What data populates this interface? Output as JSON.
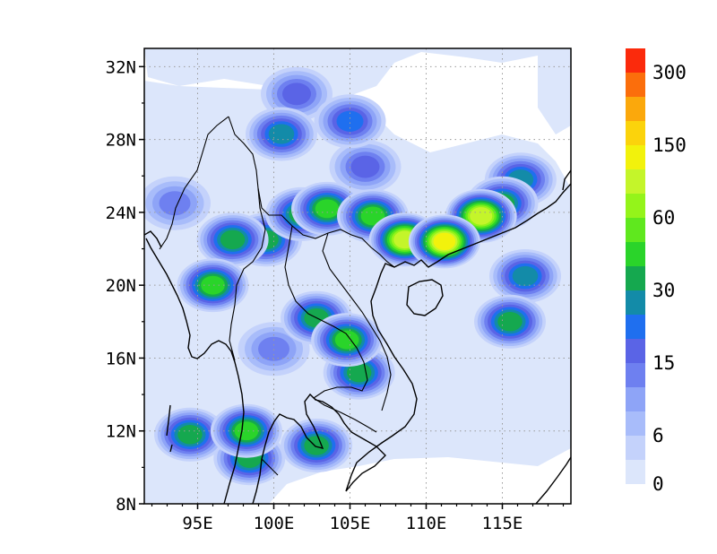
{
  "map": {
    "lon_range": [
      91.5,
      119.5
    ],
    "lat_range": [
      8,
      33
    ],
    "lat_ticks": [
      {
        "value": 8,
        "label": "8N"
      },
      {
        "value": 12,
        "label": "12N"
      },
      {
        "value": 16,
        "label": "16N"
      },
      {
        "value": 20,
        "label": "20N"
      },
      {
        "value": 24,
        "label": "24N"
      },
      {
        "value": 28,
        "label": "28N"
      },
      {
        "value": 32,
        "label": "32N"
      }
    ],
    "lon_ticks": [
      {
        "value": 95,
        "label": "95E"
      },
      {
        "value": 100,
        "label": "100E"
      },
      {
        "value": 105,
        "label": "105E"
      },
      {
        "value": 110,
        "label": "110E"
      },
      {
        "value": 115,
        "label": "115E"
      }
    ],
    "gridlines": true,
    "field": "gridded precipitation-like totals over Southeast Asia / South China, shaded contours"
  },
  "colorbar": {
    "levels": [
      "0",
      "3",
      "6",
      "9",
      "12",
      "15",
      "20",
      "25",
      "30",
      "40",
      "50",
      "60",
      "80",
      "100",
      "150",
      "200",
      "250",
      "300"
    ],
    "labels": [
      "0",
      "6",
      "15",
      "30",
      "60",
      "150",
      "300"
    ],
    "colors": [
      "#dce6fb",
      "#c4d2fb",
      "#a8bcfa",
      "#8ea4f7",
      "#6e80f0",
      "#5a64e6",
      "#1f6fef",
      "#138ba8",
      "#15a84f",
      "#2ad42a",
      "#5fe81e",
      "#94f41a",
      "#c4f52a",
      "#f2f20c",
      "#fbd30c",
      "#fba80c",
      "#fb6e0c",
      "#fb2a0c"
    ]
  },
  "legend": {
    "placement": "right"
  },
  "hotspots": [
    {
      "lon": 111.2,
      "lat": 22.4,
      "value": 100
    },
    {
      "lon": 108.6,
      "lat": 22.5,
      "value": 80
    },
    {
      "lon": 113.6,
      "lat": 23.8,
      "value": 80
    },
    {
      "lon": 106.5,
      "lat": 23.8,
      "value": 45
    },
    {
      "lon": 103.5,
      "lat": 24.2,
      "value": 40
    },
    {
      "lon": 101.8,
      "lat": 23.9,
      "value": 35
    },
    {
      "lon": 115.0,
      "lat": 24.5,
      "value": 30
    },
    {
      "lon": 116.2,
      "lat": 25.8,
      "value": 25
    },
    {
      "lon": 104.8,
      "lat": 17.0,
      "value": 45
    },
    {
      "lon": 105.6,
      "lat": 15.2,
      "value": 35
    },
    {
      "lon": 102.8,
      "lat": 18.2,
      "value": 30
    },
    {
      "lon": 96.0,
      "lat": 20.0,
      "value": 45
    },
    {
      "lon": 97.3,
      "lat": 22.5,
      "value": 35
    },
    {
      "lon": 99.5,
      "lat": 22.5,
      "value": 30
    },
    {
      "lon": 98.2,
      "lat": 12.0,
      "value": 45
    },
    {
      "lon": 98.4,
      "lat": 10.5,
      "value": 30
    },
    {
      "lon": 94.5,
      "lat": 11.8,
      "value": 30
    },
    {
      "lon": 102.8,
      "lat": 11.2,
      "value": 30
    },
    {
      "lon": 115.5,
      "lat": 18.0,
      "value": 35
    },
    {
      "lon": 116.5,
      "lat": 20.5,
      "value": 25
    },
    {
      "lon": 100.5,
      "lat": 28.3,
      "value": 25
    },
    {
      "lon": 105.0,
      "lat": 29.0,
      "value": 20
    },
    {
      "lon": 101.5,
      "lat": 30.5,
      "value": 15
    },
    {
      "lon": 106.0,
      "lat": 26.5,
      "value": 15
    },
    {
      "lon": 93.5,
      "lat": 24.5,
      "value": 12
    },
    {
      "lon": 100.0,
      "lat": 16.5,
      "value": 12
    }
  ]
}
